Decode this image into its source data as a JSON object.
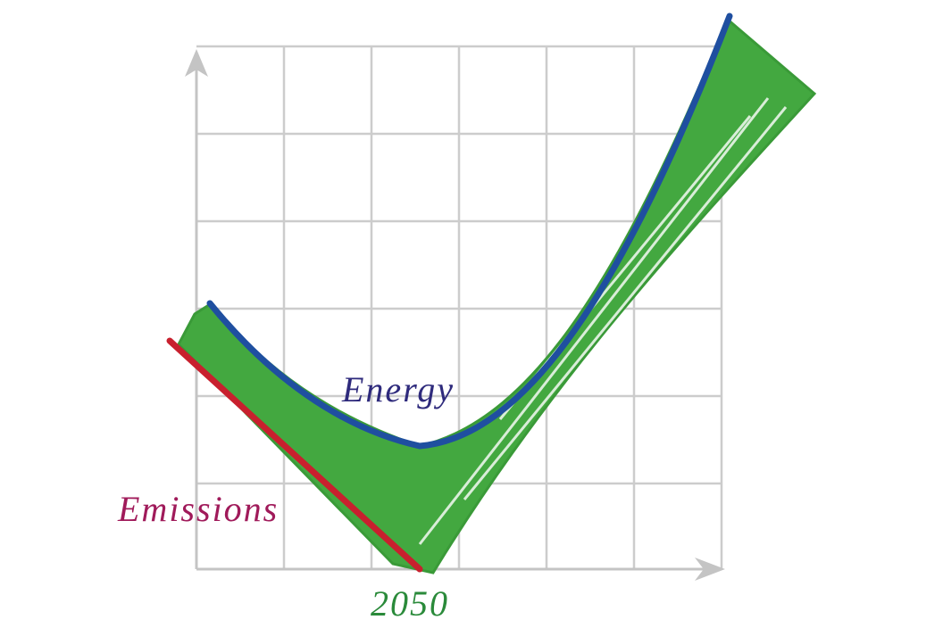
{
  "labels": {
    "energy": "Energy",
    "emissions": "Emissions",
    "year": "2050"
  }
}
